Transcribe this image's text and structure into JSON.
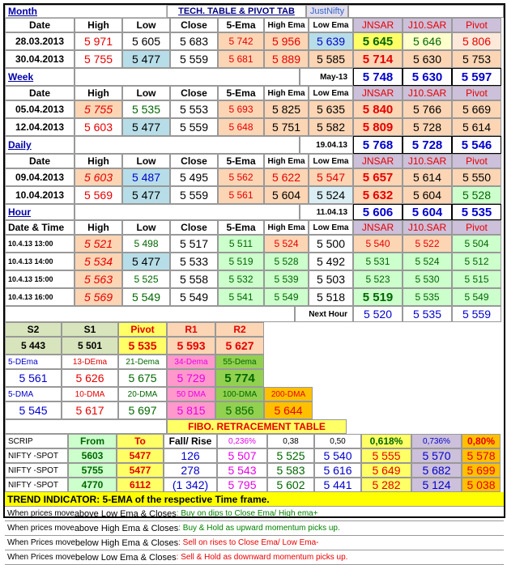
{
  "title": {
    "section": "Month",
    "main": "TECH. TABLE  & PIVOT TAB",
    "brand": "JustNifty"
  },
  "cols": {
    "date": "Date",
    "high": "High",
    "low": "Low",
    "close": "Close",
    "ema5": "5-Ema",
    "highema": "High Ema",
    "lowema": "Low Ema",
    "jnsar": "JNSAR",
    "j10": "J10.SAR",
    "pivot": "Pivot",
    "datetime": "Date & Time"
  },
  "month": {
    "rows": [
      [
        "28.03.2013",
        "5 971",
        "5 605",
        "5 683",
        "5 742",
        "5 956",
        "5 639",
        "5 645",
        "5 646",
        "5 806"
      ],
      [
        "30.04.2013",
        "5 755",
        "5 477",
        "5 559",
        "5 681",
        "5 889",
        "5 585",
        "5 714",
        "5 630",
        "5 753"
      ]
    ]
  },
  "week": {
    "label": "Week",
    "tag": "May-13",
    "proj": [
      "5 748",
      "5 630",
      "5 597"
    ],
    "rows": [
      [
        "05.04.2013",
        "5 755",
        "5 535",
        "5 553",
        "5 693",
        "5 825",
        "5 635",
        "5 840",
        "5 766",
        "5 669"
      ],
      [
        "12.04.2013",
        "5 603",
        "5 477",
        "5 559",
        "5 648",
        "5 751",
        "5 582",
        "5 809",
        "5 728",
        "5 614"
      ]
    ]
  },
  "daily": {
    "label": "Daily",
    "tag": "19.04.13",
    "proj": [
      "5 768",
      "5 728",
      "5 546"
    ],
    "rows": [
      [
        "09.04.2013",
        "5 603",
        "5 487",
        "5 495",
        "5 562",
        "5 622",
        "5 547",
        "5 657",
        "5 614",
        "5 550"
      ],
      [
        "10.04.2013",
        "5 569",
        "5 477",
        "5 559",
        "5 561",
        "5 604",
        "5 524",
        "5 632",
        "5 604",
        "5 528"
      ]
    ]
  },
  "hour": {
    "label": "Hour",
    "tag": "11.04.13",
    "proj": [
      "5 606",
      "5 604",
      "5 535"
    ],
    "rows": [
      [
        "10.4.13 13:00",
        "5 521",
        "5 498",
        "5 517",
        "5 511",
        "5 524",
        "5 500",
        "5 540",
        "5 522",
        "5 504"
      ],
      [
        "10.4.13 14:00",
        "5 534",
        "5 477",
        "5 533",
        "5 519",
        "5 528",
        "5 492",
        "5 531",
        "5 524",
        "5 512"
      ],
      [
        "10.4.13 15:00",
        "5 563",
        "5 525",
        "5 558",
        "5 532",
        "5 539",
        "5 503",
        "5 523",
        "5 530",
        "5 515"
      ],
      [
        "10.4.13 16:00",
        "5 569",
        "5 549",
        "5 549",
        "5 541",
        "5 549",
        "5 518",
        "5 519",
        "5 535",
        "5 549"
      ]
    ],
    "next_label": "Next Hour",
    "next": [
      "5 520",
      "5 535",
      "5 559"
    ]
  },
  "pivot": {
    "h": [
      "S2",
      "S1",
      "Pivot",
      "R1",
      "R2"
    ],
    "v": [
      "5 443",
      "5 501",
      "5 535",
      "5 593",
      "5 627"
    ]
  },
  "dema": {
    "h": [
      "5-DEma",
      "13-DEma",
      "21-Dema",
      "34-Dema",
      "55-Dema"
    ],
    "v": [
      "5 561",
      "5 626",
      "5 675",
      "5 729",
      "5 774"
    ]
  },
  "dma": {
    "h": [
      "5-DMA",
      "10-DMA",
      "20-DMA",
      "50 DMA",
      "100-DMA",
      "200-DMA"
    ],
    "v": [
      "5 545",
      "5 617",
      "5 697",
      "5 815",
      "5 856",
      "5 644"
    ]
  },
  "fibo": {
    "title": "FIBO. RETRACEMENT TABLE",
    "h": [
      "SCRIP",
      "From",
      "To",
      "Fall/ Rise",
      "0,236%",
      "0,38",
      "0,50",
      "0,618%",
      "0,736%",
      "0,80%"
    ],
    "rows": [
      [
        "NIFTY -SPOT",
        "5603",
        "5477",
        "126",
        "5 507",
        "5 525",
        "5 540",
        "5 555",
        "5 570",
        "5 578"
      ],
      [
        "NIFTY -SPOT",
        "5755",
        "5477",
        "278",
        "5 543",
        "5 583",
        "5 616",
        "5 649",
        "5 682",
        "5 699"
      ],
      [
        "NIFTY -SPOT",
        "4770",
        "6112",
        "(1 342)",
        "5 795",
        "5 602",
        "5 441",
        "5 282",
        "5 124",
        "5 038"
      ]
    ]
  },
  "trend": "TREND INDICATOR: 5-EMA of the respective Time frame.",
  "notes": [
    {
      "a": "When prices move ",
      "b": "above Low Ema & Closes",
      "c": ": Buy on dips to Close Ema/ High ema+"
    },
    {
      "a": "When prices move ",
      "b": "above High Ema & Closes",
      "c": ": Buy & Hold as upward momentum picks up."
    },
    {
      "a": "When Prices move ",
      "b": "below High Ema & Closes",
      "c": ": Sell on rises to Close Ema/ Low Ema-"
    },
    {
      "a": "When Prices move ",
      "b": "below Low Ema & Closes",
      "c": ": Sell & Hold as downward momentum picks up."
    }
  ]
}
